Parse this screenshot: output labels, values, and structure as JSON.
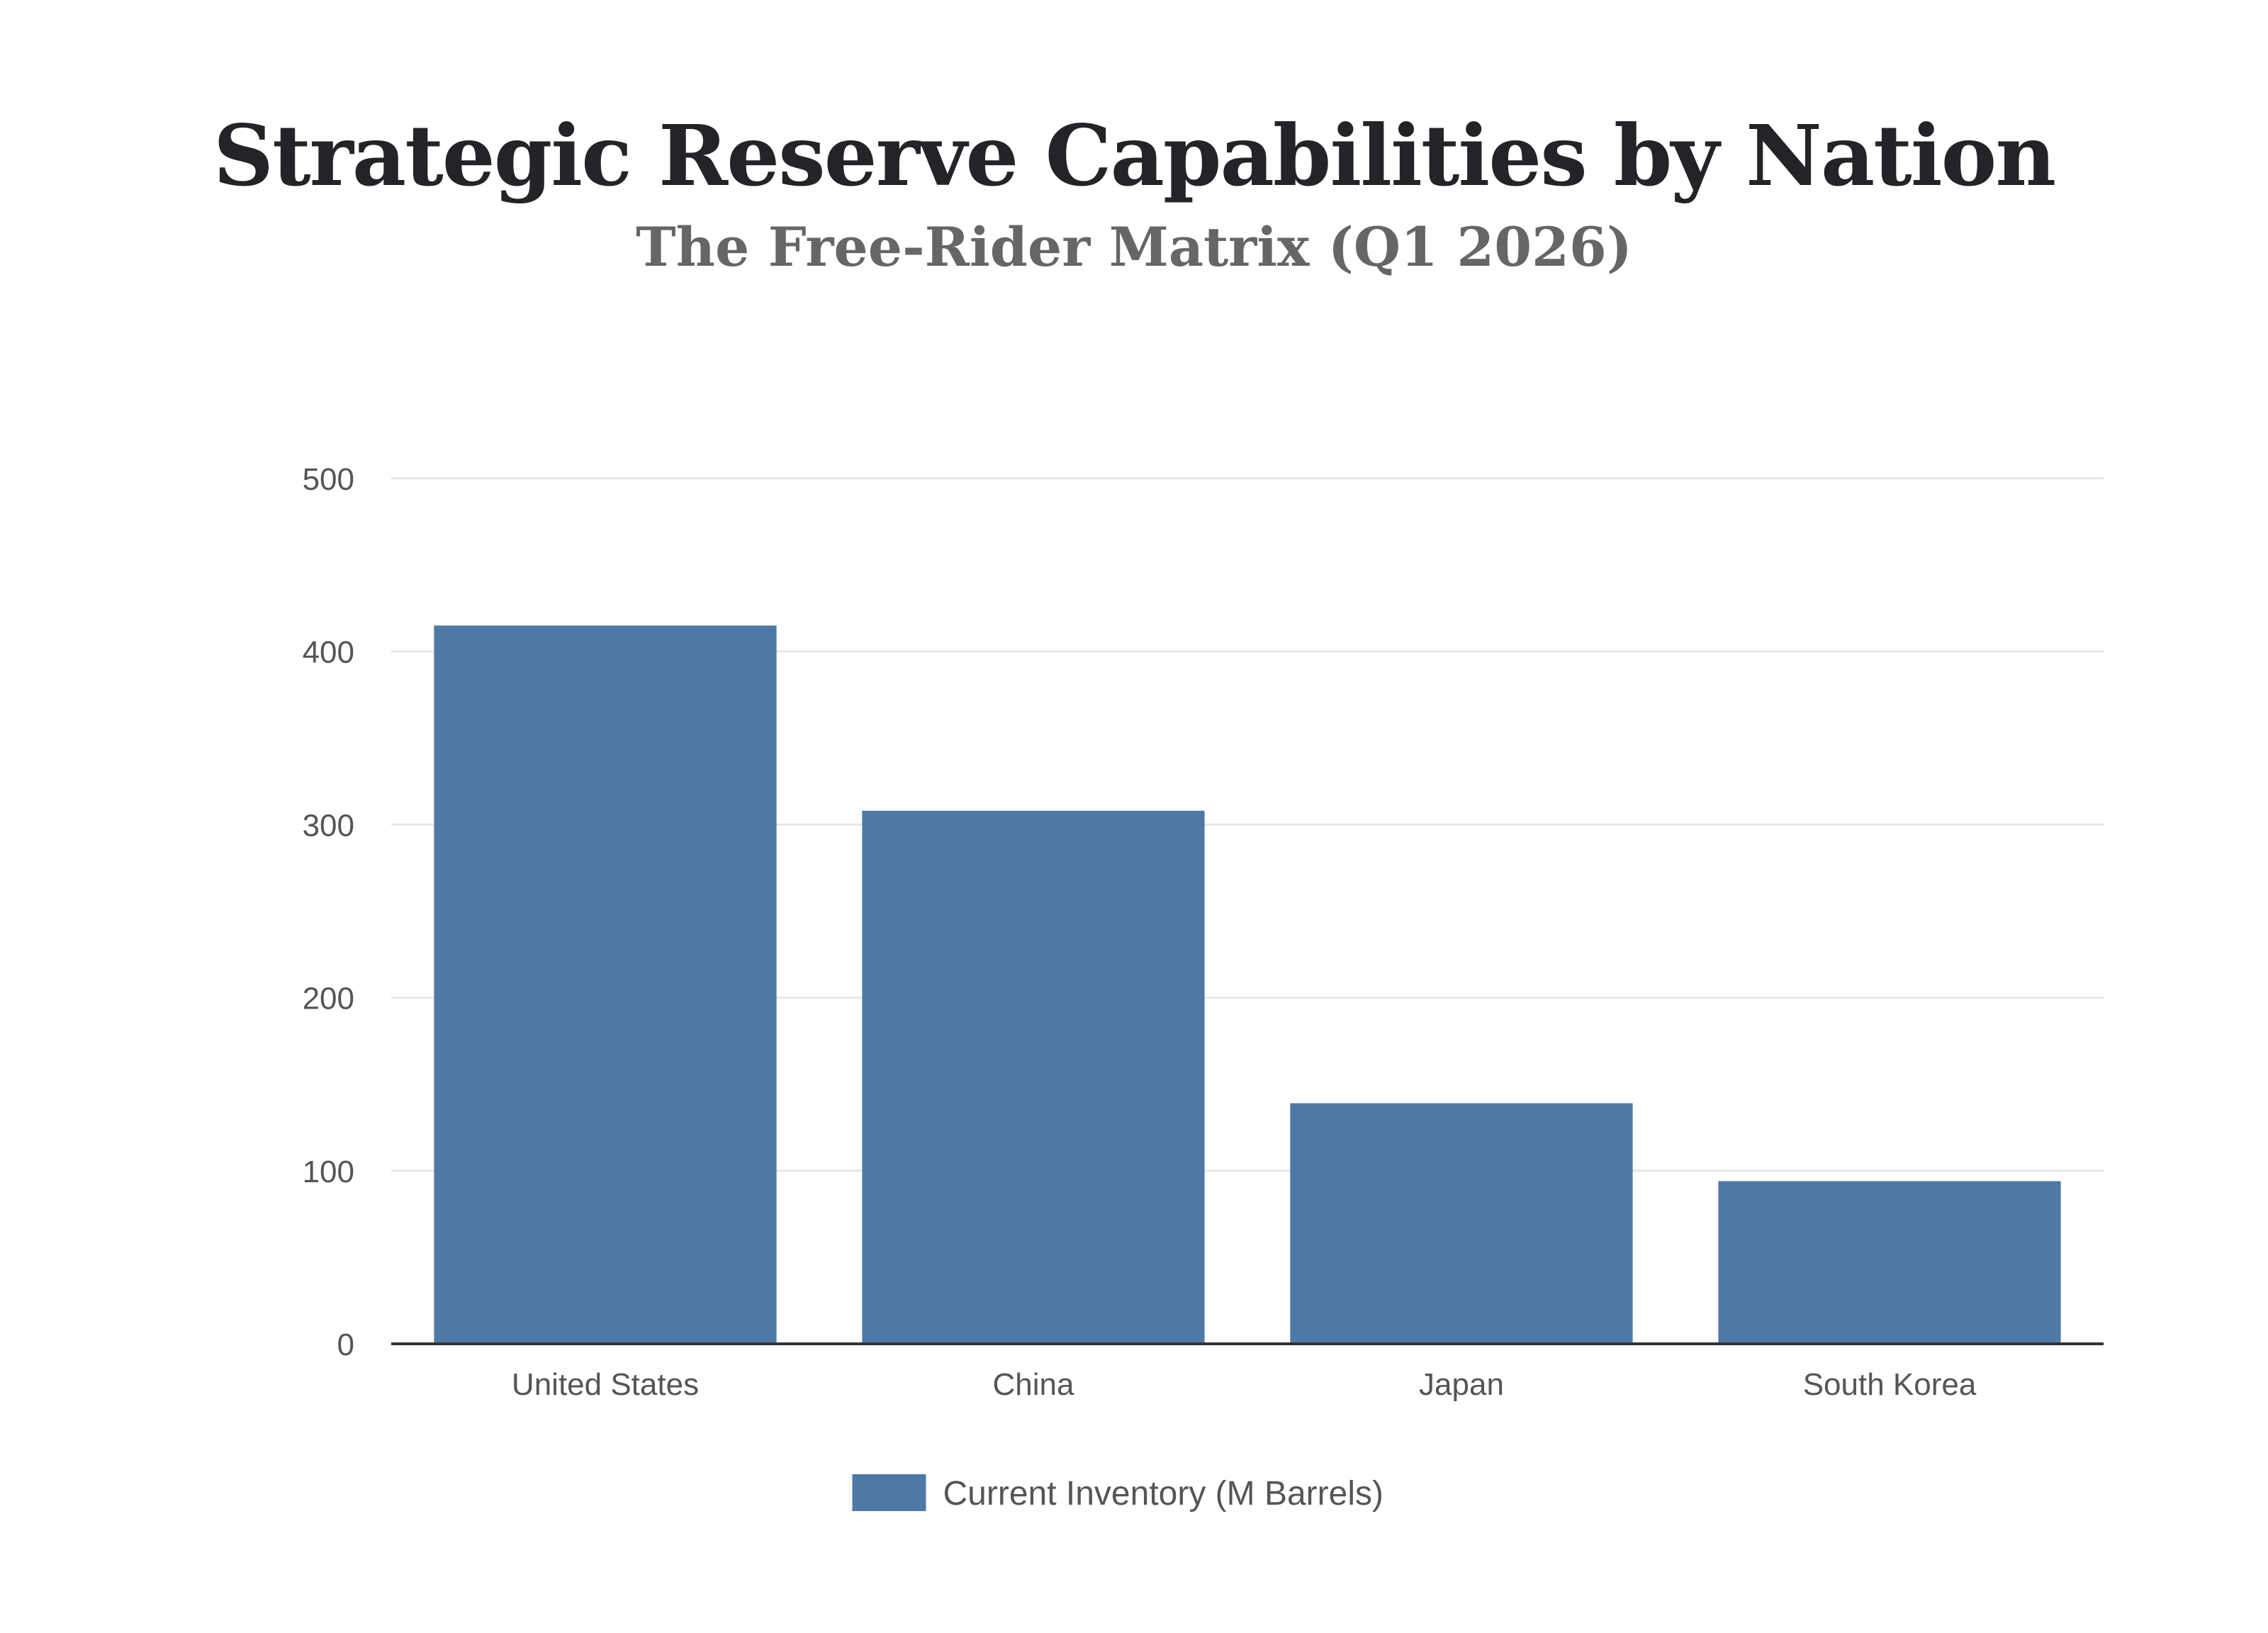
{
  "chart_data": {
    "type": "bar",
    "title": "Strategic Reserve Capabilities by Nation",
    "subtitle": "The Free-Rider Matrix (Q1 2026)",
    "categories": [
      "United States",
      "China",
      "Japan",
      "South Korea"
    ],
    "series": [
      {
        "name": "Current Inventory (M Barrels)",
        "values": [
          415,
          308,
          139,
          94
        ],
        "color": "#4e79a7"
      }
    ],
    "xlabel": "",
    "ylabel": "",
    "ylim": [
      0,
      500
    ],
    "yticks": [
      0,
      100,
      200,
      300,
      400,
      500
    ],
    "grid": true,
    "legend_position": "bottom-center",
    "colors": {
      "bar": "#4e79a7",
      "grid": "#e6e6e6",
      "axis": "#333333"
    }
  }
}
